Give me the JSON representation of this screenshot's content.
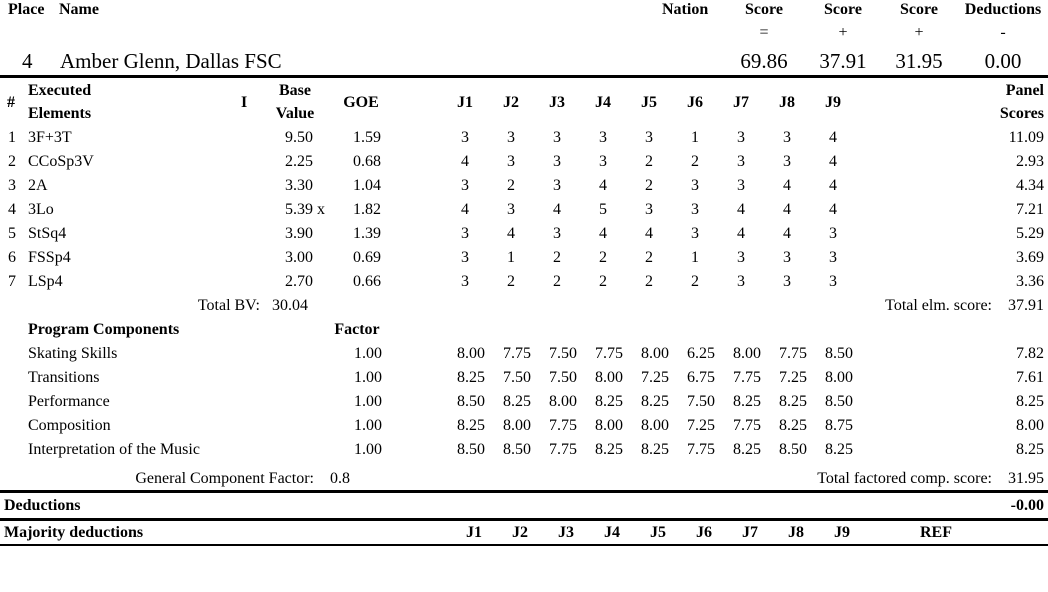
{
  "header": {
    "place_label": "Place",
    "name_label": "Name",
    "nation_label": "Nation",
    "score_labels": [
      "Score",
      "Score",
      "Score"
    ],
    "deductions_label": "Deductions",
    "operators": [
      "=",
      "+",
      "+",
      "-"
    ]
  },
  "skater": {
    "place": "4",
    "name": "Amber Glenn, Dallas FSC",
    "total_score": "69.86",
    "element_score": "37.91",
    "component_score": "31.95",
    "deductions": "0.00"
  },
  "elements_table": {
    "headers": {
      "num": "#",
      "executed": "Executed",
      "elements": "Elements",
      "info": "I",
      "base": "Base",
      "value": "Value",
      "goe": "GOE",
      "judges": [
        "J1",
        "J2",
        "J3",
        "J4",
        "J5",
        "J6",
        "J7",
        "J8",
        "J9"
      ],
      "panel": "Panel",
      "scores": "Scores"
    },
    "rows": [
      {
        "num": "1",
        "element": "3F+3T",
        "info": "",
        "base": "9.50",
        "goe": "1.59",
        "judges": [
          "3",
          "3",
          "3",
          "3",
          "3",
          "1",
          "3",
          "3",
          "4"
        ],
        "panel": "11.09"
      },
      {
        "num": "2",
        "element": "CCoSp3V",
        "info": "",
        "base": "2.25",
        "goe": "0.68",
        "judges": [
          "4",
          "3",
          "3",
          "3",
          "2",
          "2",
          "3",
          "3",
          "4"
        ],
        "panel": "2.93"
      },
      {
        "num": "3",
        "element": "2A",
        "info": "",
        "base": "3.30",
        "goe": "1.04",
        "judges": [
          "3",
          "2",
          "3",
          "4",
          "2",
          "3",
          "3",
          "4",
          "4"
        ],
        "panel": "4.34"
      },
      {
        "num": "4",
        "element": "3Lo",
        "info": "x",
        "base": "5.39",
        "goe": "1.82",
        "judges": [
          "4",
          "3",
          "4",
          "5",
          "3",
          "3",
          "4",
          "4",
          "4"
        ],
        "panel": "7.21"
      },
      {
        "num": "5",
        "element": "StSq4",
        "info": "",
        "base": "3.90",
        "goe": "1.39",
        "judges": [
          "3",
          "4",
          "3",
          "4",
          "4",
          "3",
          "4",
          "4",
          "3"
        ],
        "panel": "5.29"
      },
      {
        "num": "6",
        "element": "FSSp4",
        "info": "",
        "base": "3.00",
        "goe": "0.69",
        "judges": [
          "3",
          "1",
          "2",
          "2",
          "2",
          "1",
          "3",
          "3",
          "3"
        ],
        "panel": "3.69"
      },
      {
        "num": "7",
        "element": "LSp4",
        "info": "",
        "base": "2.70",
        "goe": "0.66",
        "judges": [
          "3",
          "2",
          "2",
          "2",
          "2",
          "2",
          "3",
          "3",
          "3"
        ],
        "panel": "3.36"
      }
    ],
    "total_bv_label": "Total BV:",
    "total_bv": "30.04",
    "total_elm_label": "Total elm. score:",
    "total_elm": "37.91"
  },
  "components_table": {
    "title": "Program Components",
    "factor_label": "Factor",
    "rows": [
      {
        "name": "Skating Skills",
        "factor": "1.00",
        "judges": [
          "8.00",
          "7.75",
          "7.50",
          "7.75",
          "8.00",
          "6.25",
          "8.00",
          "7.75",
          "8.50"
        ],
        "score": "7.82"
      },
      {
        "name": "Transitions",
        "factor": "1.00",
        "judges": [
          "8.25",
          "7.50",
          "7.50",
          "8.00",
          "7.25",
          "6.75",
          "7.75",
          "7.25",
          "8.00"
        ],
        "score": "7.61"
      },
      {
        "name": "Performance",
        "factor": "1.00",
        "judges": [
          "8.50",
          "8.25",
          "8.00",
          "8.25",
          "8.25",
          "7.50",
          "8.25",
          "8.25",
          "8.50"
        ],
        "score": "8.25"
      },
      {
        "name": "Composition",
        "factor": "1.00",
        "judges": [
          "8.25",
          "8.00",
          "7.75",
          "8.00",
          "8.00",
          "7.25",
          "7.75",
          "8.25",
          "8.75"
        ],
        "score": "8.00"
      },
      {
        "name": "Interpretation of the Music",
        "factor": "1.00",
        "judges": [
          "8.50",
          "8.50",
          "7.75",
          "8.25",
          "8.25",
          "7.75",
          "8.25",
          "8.50",
          "8.25"
        ],
        "score": "8.25"
      }
    ],
    "gcf_label": "General Component Factor:",
    "gcf": "0.8",
    "total_label": "Total factored comp. score:",
    "total": "31.95"
  },
  "deductions": {
    "label": "Deductions",
    "value": "-0.00"
  },
  "majority": {
    "label": "Majority deductions",
    "judges": [
      "J1",
      "J2",
      "J3",
      "J4",
      "J5",
      "J6",
      "J7",
      "J8",
      "J9"
    ],
    "ref": "REF"
  }
}
